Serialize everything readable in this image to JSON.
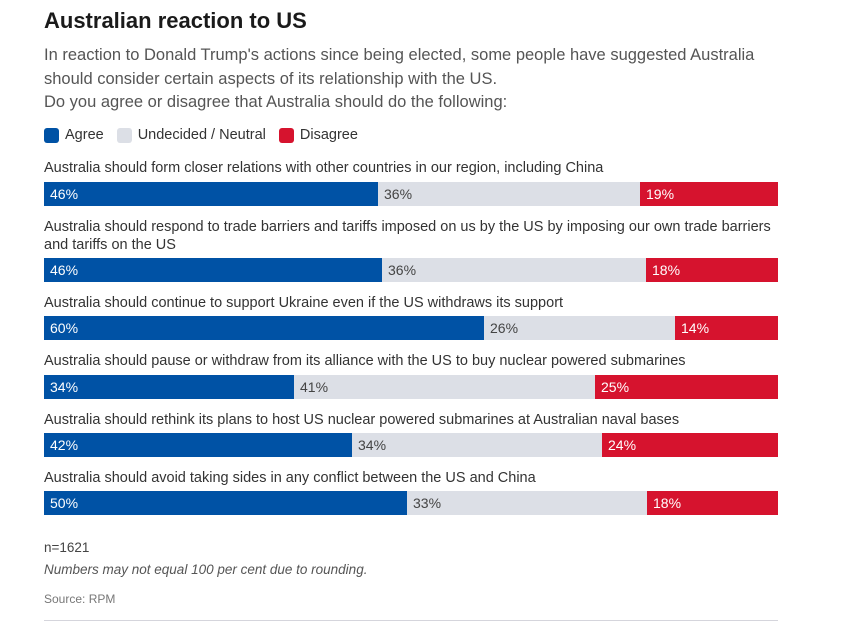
{
  "chart_data": {
    "type": "bar",
    "orientation": "horizontal",
    "stacked": true,
    "title": "Australian reaction to US",
    "subtitle": "In reaction to Donald Trump's actions since being elected, some people have suggested Australia should consider certain aspects of its relationship with the US. Do you agree or disagree that Australia should do the following:",
    "legend_position": "top-left",
    "categories": [
      "Australia should form closer relations with other countries in our region, including China",
      "Australia should respond to trade barriers and tariffs imposed on us by the US by imposing our own trade barriers and tariffs on the US",
      "Australia should continue to support Ukraine even if the US withdraws its support",
      "Australia should pause or withdraw from its alliance with the US to buy nuclear powered submarines",
      "Australia should rethink its plans to host US nuclear powered submarines at Australian naval bases",
      "Australia should avoid taking sides in any conflict between the US and China"
    ],
    "series": [
      {
        "name": "Agree",
        "color": "#0052a5",
        "label_color": "#ffffff",
        "values": [
          46,
          46,
          60,
          34,
          42,
          50
        ]
      },
      {
        "name": "Undecided / Neutral",
        "color": "#dcdfe6",
        "label_color": "#444444",
        "values": [
          36,
          36,
          26,
          41,
          34,
          33
        ]
      },
      {
        "name": "Disagree",
        "color": "#d6132e",
        "label_color": "#ffffff",
        "values": [
          19,
          18,
          14,
          25,
          24,
          18
        ]
      }
    ],
    "value_suffix": "%",
    "footnotes": {
      "n": "n=1621",
      "note": "Numbers may not equal 100 per cent due to rounding.",
      "source": "Source: RPM"
    }
  }
}
